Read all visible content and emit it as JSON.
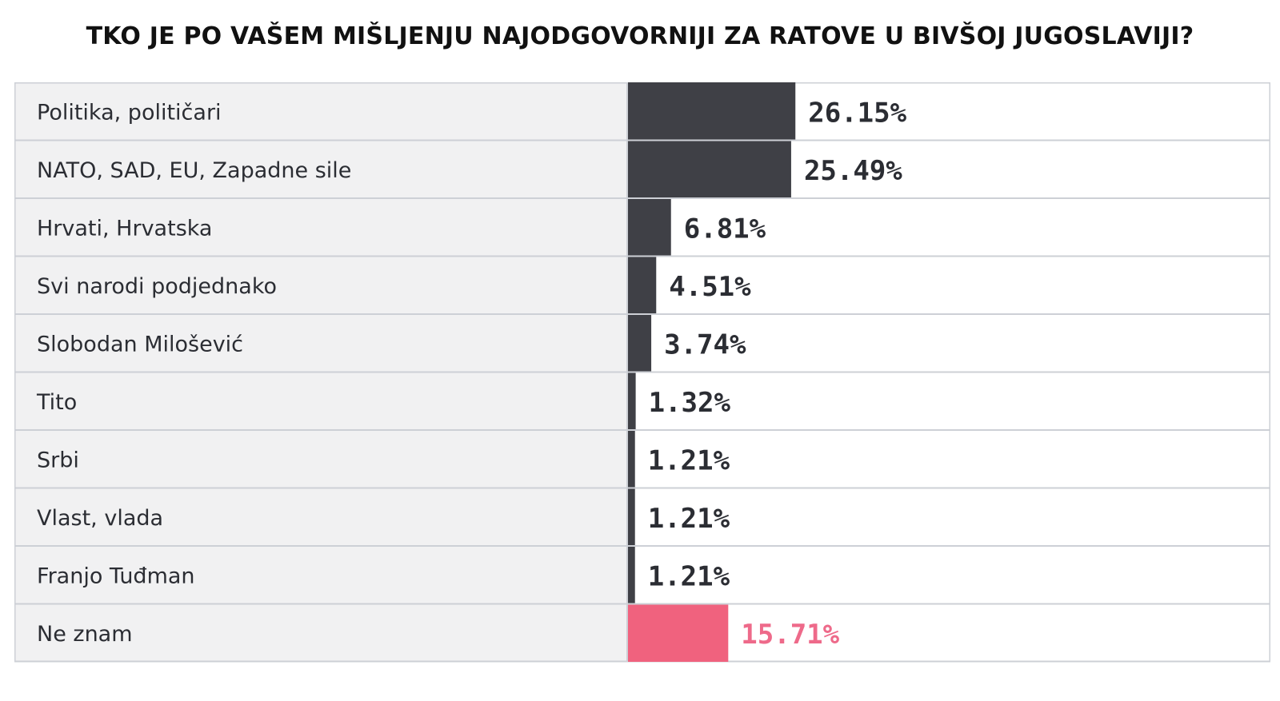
{
  "chart_data": {
    "type": "bar",
    "title": "TKO JE PO VAŠEM MIŠLJENJU NAJODGOVORNIJI ZA RATOVE U BIVŠOJ JUGOSLAVIJI?",
    "categories": [
      "Politika, političari",
      "NATO, SAD, EU, Zapadne sile",
      "Hrvati, Hrvatska",
      "Svi narodi podjednako",
      "Slobodan Milošević",
      "Tito",
      "Srbi",
      "Vlast, vlada",
      "Franjo Tuđman",
      "Ne znam"
    ],
    "values": [
      26.15,
      25.49,
      6.81,
      4.51,
      3.74,
      1.32,
      1.21,
      1.21,
      1.21,
      15.71
    ],
    "value_labels": [
      "26.15%",
      "25.49%",
      "6.81%",
      "4.51%",
      "3.74%",
      "1.32%",
      "1.21%",
      "1.21%",
      "1.21%",
      "15.71%"
    ],
    "unit": "%",
    "orientation": "horizontal",
    "xlim": [
      0,
      100
    ],
    "grid": false,
    "legend": "none",
    "colors": {
      "bar": "#3f4046",
      "highlight_bar": "#f0627e",
      "highlight_label": "#ee6a8a",
      "label": "#2b2d33",
      "category_bg": "#f1f1f2",
      "row_border": "#cdd0d6",
      "title": "#111111"
    },
    "highlight_index": 9
  }
}
